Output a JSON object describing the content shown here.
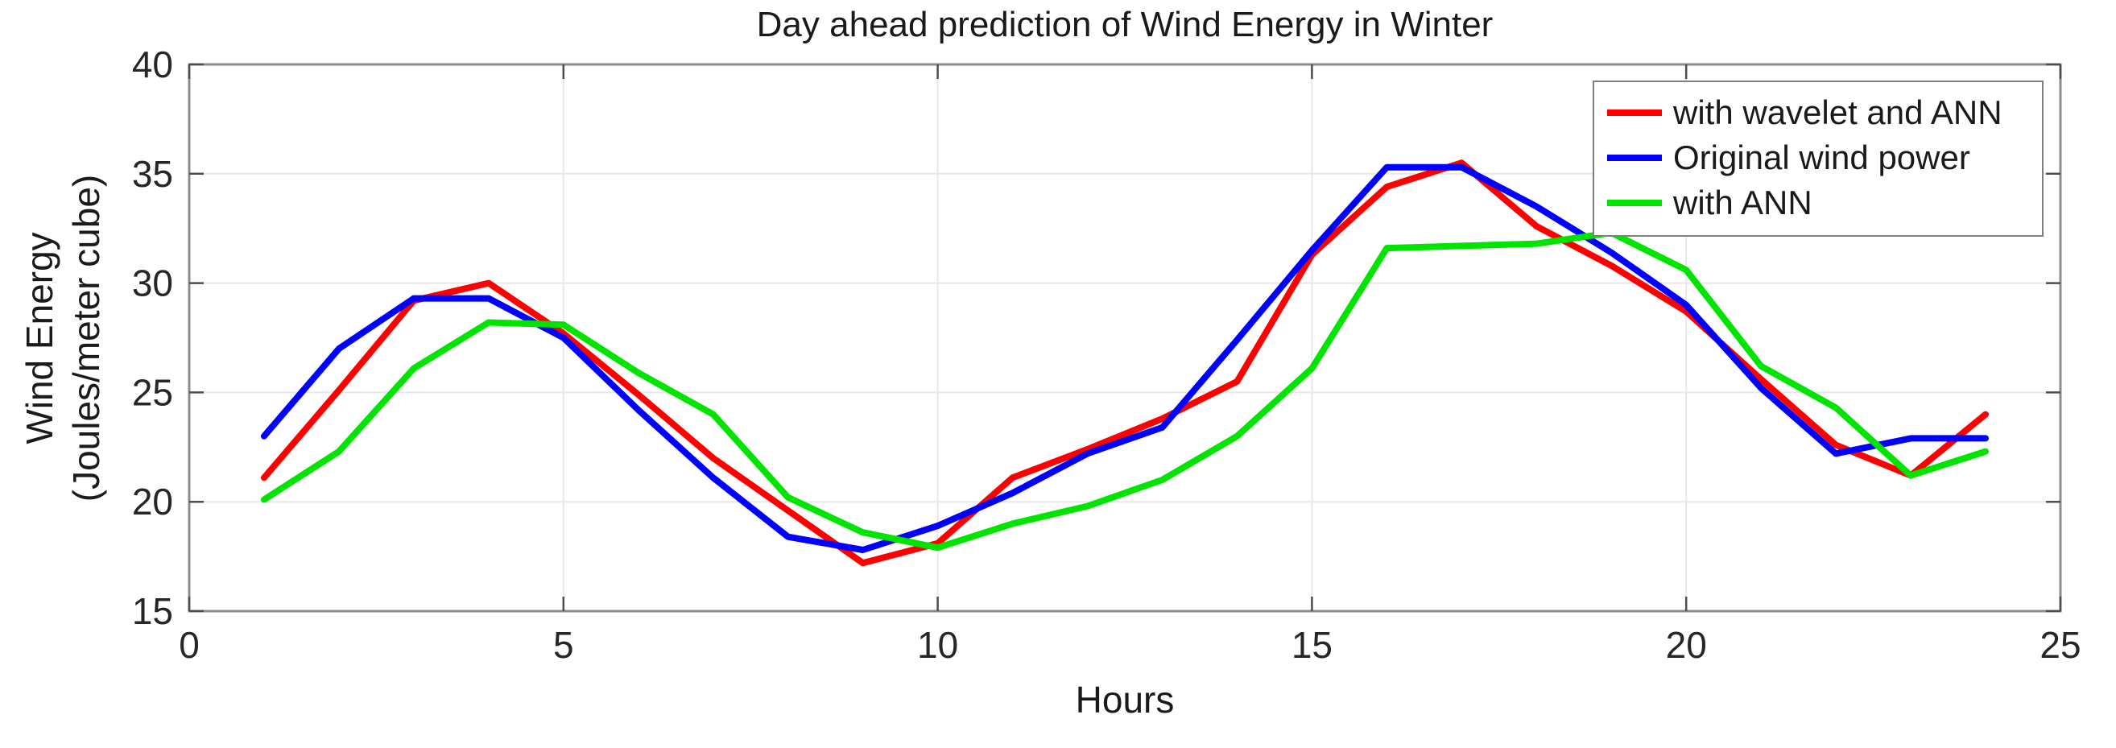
{
  "chart_data": {
    "type": "line",
    "title": "Day ahead prediction of Wind Energy in Winter",
    "xlabel": "Hours",
    "ylabel_line1": "Wind Energy",
    "ylabel_line2": "(Joules/meter cube)",
    "xlim": [
      0,
      25
    ],
    "ylim": [
      15,
      40
    ],
    "x_ticks": [
      0,
      5,
      10,
      15,
      20,
      25
    ],
    "y_ticks": [
      15,
      20,
      25,
      30,
      35,
      40
    ],
    "grid": true,
    "legend_position": "top-right",
    "x": [
      1,
      2,
      3,
      4,
      5,
      6,
      7,
      8,
      9,
      10,
      11,
      12,
      13,
      14,
      15,
      16,
      17,
      18,
      19,
      20,
      21,
      22,
      23,
      24
    ],
    "series": [
      {
        "name": "with wavelet and ANN",
        "color": "#FF0000",
        "values": [
          21.1,
          25.1,
          29.2,
          30.0,
          27.7,
          24.9,
          22.0,
          19.6,
          17.2,
          18.1,
          21.1,
          22.4,
          23.8,
          25.5,
          31.3,
          34.4,
          35.5,
          32.6,
          30.8,
          28.7,
          25.6,
          22.6,
          21.2,
          24.0
        ]
      },
      {
        "name": "Original wind power",
        "color": "#0000FF",
        "values": [
          23.0,
          27.0,
          29.3,
          29.3,
          27.5,
          24.2,
          21.1,
          18.4,
          17.8,
          18.9,
          20.4,
          22.2,
          23.4,
          27.4,
          31.5,
          35.3,
          35.3,
          33.5,
          31.4,
          29.0,
          25.2,
          22.2,
          22.9,
          22.9
        ]
      },
      {
        "name": "with ANN",
        "color": "#00E400",
        "values": [
          20.1,
          22.3,
          26.1,
          28.2,
          28.1,
          25.9,
          24.0,
          20.2,
          18.6,
          17.9,
          19.0,
          19.8,
          21.0,
          23.0,
          26.1,
          31.6,
          31.7,
          31.8,
          32.3,
          30.6,
          26.2,
          24.3,
          21.2,
          22.3
        ]
      }
    ],
    "colors": {
      "plot_border": "#8c8c8c",
      "tick": "#4d4d4d",
      "grid": "#e8e8e8",
      "text": "#262626",
      "background": "#ffffff"
    }
  }
}
